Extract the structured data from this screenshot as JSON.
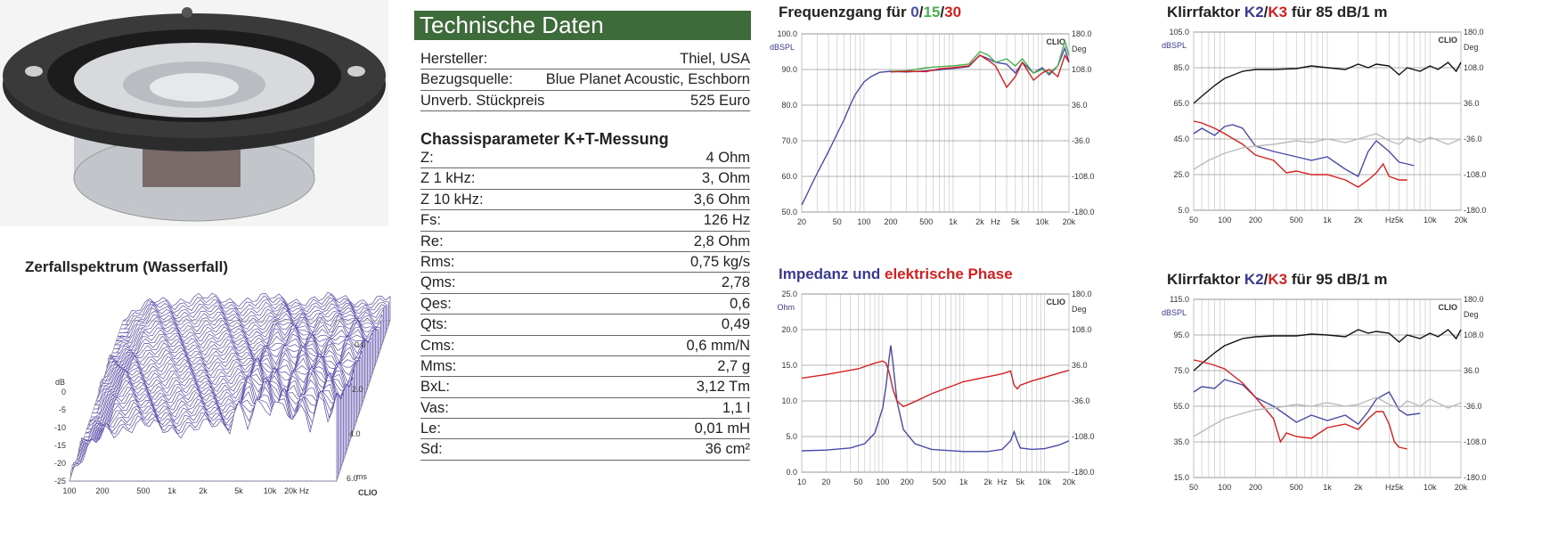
{
  "colors": {
    "header_green": "#3d6b3a",
    "blue": "#4a4aa8",
    "green": "#4caf50",
    "red": "#d42020",
    "black": "#111111",
    "grey": "#bbbbbb"
  },
  "photo": {
    "name": "speaker-photo"
  },
  "tech": {
    "title": "Technische Daten",
    "general": [
      {
        "label": "Hersteller:",
        "value": "Thiel, USA"
      },
      {
        "label": "Bezugsquelle:",
        "value": "Blue Planet Acoustic, Eschborn"
      },
      {
        "label": "Unverb. Stückpreis",
        "value": "525 Euro"
      }
    ],
    "section_title": "Chassisparameter K+T-Messung",
    "params": [
      {
        "label": "Z:",
        "value": "4 Ohm"
      },
      {
        "label": "Z 1 kHz:",
        "value": "3, Ohm"
      },
      {
        "label": "Z 10 kHz:",
        "value": "3,6 Ohm"
      },
      {
        "label": "Fs:",
        "value": "126 Hz"
      },
      {
        "label": "Re:",
        "value": "2,8 Ohm"
      },
      {
        "label": "Rms:",
        "value": "0,75 kg/s"
      },
      {
        "label": "Qms:",
        "value": "2,78"
      },
      {
        "label": "Qes:",
        "value": "0,6"
      },
      {
        "label": "Qts:",
        "value": "0,49"
      },
      {
        "label": "Cms:",
        "value": "0,6 mm/N"
      },
      {
        "label": "Mms:",
        "value": "2,7 g"
      },
      {
        "label": "BxL:",
        "value": "3,12 Tm"
      },
      {
        "label": "Vas:",
        "value": "1,1 l"
      },
      {
        "label": "Le:",
        "value": "0,01 mH"
      },
      {
        "label": "Sd:",
        "value": "36 cm²"
      }
    ]
  },
  "titles": {
    "freq_a": "Frequenzgang für ",
    "freq_0": "0",
    "freq_s1": "/",
    "freq_15": "15",
    "freq_s2": "/",
    "freq_30": "30",
    "imp_a": "Impedanz und ",
    "imp_b": "elektrische Phase",
    "k85_a": "Klirrfaktor ",
    "k85_k2": "K2",
    "k85_s": "/",
    "k85_k3": "K3",
    "k85_b": " für 85 dB/1 m",
    "k95_a": "Klirrfaktor ",
    "k95_k2": "K2",
    "k95_s": "/",
    "k95_k3": "K3",
    "k95_b": " für 95 dB/1 m",
    "wf": "Zerfallspektrum (Wasserfall)"
  },
  "chart_data": [
    {
      "id": "freq",
      "type": "line",
      "title": "Frequenzgang für 0/15/30",
      "xscale": "log",
      "xlim": [
        20,
        20000
      ],
      "ylim": [
        50,
        100
      ],
      "yunit": "dBSPL",
      "y2unit": "Deg",
      "brand": "CLIO",
      "xticks": [
        "20",
        "50",
        "100",
        "200",
        "500",
        "1k",
        "2k",
        "Hz",
        "5k",
        "10k",
        "20k"
      ],
      "yticks": [
        "100.0",
        "90.0",
        "80.0",
        "70.0",
        "60.0",
        "50.0"
      ],
      "y2ticks": [
        "180.0",
        "108.0",
        "36.0",
        "-36.0",
        "-108.0",
        "-180.0"
      ],
      "series": [
        {
          "name": "0",
          "color": "#4a4aa8",
          "x": [
            20,
            22,
            25,
            30,
            40,
            50,
            60,
            70,
            80,
            100,
            120,
            150,
            200,
            300,
            500,
            700,
            1000,
            1500,
            2000,
            2500,
            3000,
            4000,
            5000,
            6000,
            8000,
            10000,
            12000,
            15000,
            18000,
            20000
          ],
          "y": [
            52,
            54,
            57,
            61,
            67,
            72,
            76,
            80,
            83,
            86.5,
            88,
            89.2,
            89.5,
            89.3,
            89.6,
            89.9,
            90.3,
            90.8,
            94,
            93,
            92,
            91.5,
            89,
            92,
            89,
            90.5,
            88.5,
            91,
            96,
            92
          ]
        },
        {
          "name": "15",
          "color": "#4caf50",
          "x": [
            200,
            300,
            500,
            700,
            1000,
            1500,
            2000,
            2500,
            3000,
            4000,
            5000,
            6000,
            8000,
            10000,
            12000,
            15000,
            18000,
            20000
          ],
          "y": [
            89.5,
            89.6,
            90.5,
            90.8,
            91,
            91.5,
            95,
            94,
            92,
            93,
            91,
            93,
            89,
            90,
            89,
            91,
            98,
            94
          ]
        },
        {
          "name": "30",
          "color": "#d42020",
          "x": [
            200,
            300,
            500,
            700,
            1000,
            1500,
            2000,
            2500,
            3000,
            4000,
            5000,
            6000,
            8000,
            10000,
            12000,
            15000,
            18000,
            20000
          ],
          "y": [
            89.3,
            89.5,
            89.4,
            90.2,
            90.5,
            91,
            94,
            92.5,
            91,
            85,
            88,
            92,
            87,
            89,
            90,
            88,
            94,
            92
          ]
        }
      ]
    },
    {
      "id": "imp",
      "type": "line",
      "title": "Impedanz und elektrische Phase",
      "xscale": "log",
      "xlim": [
        10,
        20000
      ],
      "ylim": [
        0,
        25
      ],
      "yunit": "Ohm",
      "y2unit": "Deg",
      "brand": "CLIO",
      "xticks": [
        "10",
        "20",
        "50",
        "100",
        "200",
        "500",
        "1k",
        "2k",
        "Hz",
        "5k",
        "10k",
        "20k"
      ],
      "yticks": [
        "25.0",
        "20.0",
        "15.0",
        "10.0",
        "5.0",
        "0.0"
      ],
      "y2ticks": [
        "180.0",
        "108.0",
        "36.0",
        "-36.0",
        "-108.0",
        "-180.0"
      ],
      "series": [
        {
          "name": "Impedanz",
          "color": "#4a4aa8",
          "x": [
            10,
            20,
            40,
            60,
            80,
            100,
            110,
            120,
            126,
            135,
            150,
            180,
            250,
            400,
            1000,
            2000,
            3000,
            3800,
            4200,
            4600,
            5000,
            7000,
            10000,
            15000,
            20000
          ],
          "y": [
            3,
            3.1,
            3.4,
            4,
            5.5,
            9,
            12,
            16,
            17.8,
            15,
            10,
            6,
            4,
            3.2,
            2.9,
            2.9,
            3.2,
            4.4,
            5.7,
            4.4,
            3.4,
            3.2,
            3.3,
            3.8,
            4.4
          ]
        },
        {
          "name": "elektrische Phase",
          "color": "#d42020",
          "x": [
            10,
            20,
            50,
            80,
            100,
            110,
            120,
            126,
            135,
            150,
            180,
            250,
            400,
            1000,
            2000,
            3000,
            3800,
            4200,
            4600,
            5000,
            7000,
            10000,
            15000,
            20000
          ],
          "y": [
            13.2,
            13.7,
            14.5,
            15.3,
            15.6,
            15.3,
            14,
            13,
            11.5,
            10,
            9.2,
            9.9,
            11,
            12.7,
            13.4,
            13.8,
            14.2,
            12.2,
            11.7,
            12.2,
            12.8,
            13.3,
            13.9,
            14.3
          ]
        }
      ]
    },
    {
      "id": "k85",
      "type": "line",
      "title": "Klirrfaktor K2/K3 für 85 dB/1 m",
      "xscale": "log",
      "xlim": [
        50,
        20000
      ],
      "ylim": [
        5,
        105
      ],
      "yunit": "dBSPL",
      "y2unit": "Deg",
      "brand": "CLIO",
      "xticks": [
        "50",
        "100",
        "200",
        "500",
        "1k",
        "2k",
        "Hz5k",
        "10k",
        "20k"
      ],
      "yticks": [
        "105.0",
        "85.0",
        "65.0",
        "45.0",
        "25.0",
        "5.0"
      ],
      "y2ticks": [
        "180.0",
        "108.0",
        "36.0",
        "-36.0",
        "-108.0",
        "-180.0"
      ],
      "series": [
        {
          "name": "Pegel",
          "color": "#111111",
          "x": [
            50,
            60,
            80,
            100,
            150,
            200,
            300,
            500,
            700,
            1000,
            1500,
            2000,
            2500,
            3000,
            4000,
            5000,
            6000,
            8000,
            10000,
            12000,
            15000,
            18000,
            20000
          ],
          "y": [
            65,
            69,
            75,
            79,
            83,
            84,
            84,
            84.5,
            86,
            85,
            84,
            87,
            85,
            87,
            86,
            81,
            85,
            83,
            86,
            84,
            88,
            83,
            88
          ]
        },
        {
          "name": "K2",
          "color": "#4a4aa8",
          "x": [
            50,
            60,
            80,
            100,
            120,
            150,
            200,
            300,
            500,
            700,
            1000,
            1500,
            2000,
            2500,
            3000,
            4000,
            5000,
            6000,
            7000
          ],
          "y": [
            48,
            51,
            47,
            52,
            53,
            51,
            41,
            38,
            35,
            33,
            35,
            28,
            24,
            38,
            44,
            38,
            32,
            31,
            30
          ]
        },
        {
          "name": "K3",
          "color": "#d42020",
          "x": [
            50,
            60,
            80,
            100,
            150,
            200,
            300,
            400,
            500,
            700,
            1000,
            1500,
            2000,
            2500,
            3000,
            3500,
            4000,
            5000,
            6000
          ],
          "y": [
            55,
            54,
            51,
            48,
            42,
            36,
            33,
            26,
            27,
            25,
            25,
            22,
            18,
            22,
            26,
            31,
            24,
            22,
            22
          ]
        },
        {
          "name": "Grenze",
          "color": "#bbbbbb",
          "x": [
            50,
            70,
            100,
            150,
            200,
            300,
            500,
            700,
            1000,
            1500,
            2000,
            3000,
            4000,
            5000,
            6000,
            8000,
            10000,
            15000,
            20000
          ],
          "y": [
            28,
            33,
            37,
            40,
            41,
            42,
            44,
            43,
            45,
            43,
            45,
            48,
            44,
            42,
            46,
            43,
            46,
            42,
            45
          ]
        }
      ]
    },
    {
      "id": "k95",
      "type": "line",
      "title": "Klirrfaktor K2/K3 für 95 dB/1 m",
      "xscale": "log",
      "xlim": [
        50,
        20000
      ],
      "ylim": [
        15,
        115
      ],
      "yunit": "dBSPL",
      "y2unit": "Deg",
      "brand": "CLIO",
      "xticks": [
        "50",
        "100",
        "200",
        "500",
        "1k",
        "2k",
        "Hz5k",
        "10k",
        "20k"
      ],
      "yticks": [
        "115.0",
        "95.0",
        "75.0",
        "55.0",
        "35.0",
        "15.0"
      ],
      "y2ticks": [
        "180.0",
        "108.0",
        "36.0",
        "-36.0",
        "-108.0",
        "-180.0"
      ],
      "series": [
        {
          "name": "Pegel",
          "color": "#111111",
          "x": [
            50,
            60,
            80,
            100,
            150,
            200,
            300,
            500,
            700,
            1000,
            1500,
            2000,
            2500,
            3000,
            4000,
            5000,
            6000,
            8000,
            10000,
            12000,
            15000,
            18000,
            20000
          ],
          "y": [
            75,
            79,
            85,
            89,
            93,
            94,
            94.5,
            94.5,
            95.5,
            95,
            94,
            98,
            96,
            97,
            96,
            91,
            95,
            93,
            96,
            94,
            98,
            93,
            98
          ]
        },
        {
          "name": "K2",
          "color": "#4a4aa8",
          "x": [
            50,
            60,
            80,
            100,
            150,
            200,
            300,
            400,
            500,
            700,
            1000,
            1500,
            2000,
            2500,
            3000,
            4000,
            5000,
            6000,
            8000
          ],
          "y": [
            63,
            66,
            65,
            70,
            67,
            60,
            55,
            50,
            46,
            50,
            47,
            50,
            45,
            52,
            59,
            63,
            53,
            50,
            51
          ]
        },
        {
          "name": "K3",
          "color": "#d42020",
          "x": [
            50,
            60,
            80,
            100,
            150,
            200,
            300,
            350,
            400,
            500,
            700,
            1000,
            1500,
            2000,
            2500,
            3000,
            3500,
            4000,
            4500,
            5000,
            6000
          ],
          "y": [
            81,
            80,
            78,
            76,
            68,
            60,
            48,
            35,
            40,
            38,
            37,
            43,
            45,
            42,
            48,
            52,
            52,
            45,
            35,
            32,
            31
          ]
        },
        {
          "name": "Grenze",
          "color": "#bbbbbb",
          "x": [
            50,
            70,
            100,
            150,
            200,
            300,
            500,
            700,
            1000,
            1500,
            2000,
            3000,
            4000,
            5000,
            6000,
            8000,
            10000,
            15000,
            20000
          ],
          "y": [
            38,
            43,
            48,
            51,
            53,
            54,
            56,
            55,
            57,
            55,
            56,
            60,
            56,
            54,
            58,
            55,
            59,
            54,
            57
          ]
        }
      ]
    },
    {
      "id": "wf",
      "type": "area",
      "title": "Zerfallspektrum (Wasserfall)",
      "zticks": [
        "0",
        "-5",
        "-10",
        "-15",
        "-20",
        "-25"
      ],
      "zunit": "dB",
      "xticks": [
        "100",
        "200",
        "500",
        "1k",
        "2k",
        "5k",
        "10k",
        "20k Hz"
      ],
      "tticks": [
        "0.0",
        "2.0",
        "4.0",
        "6.0"
      ],
      "tunit": "ms",
      "brand": "CLIO"
    }
  ]
}
